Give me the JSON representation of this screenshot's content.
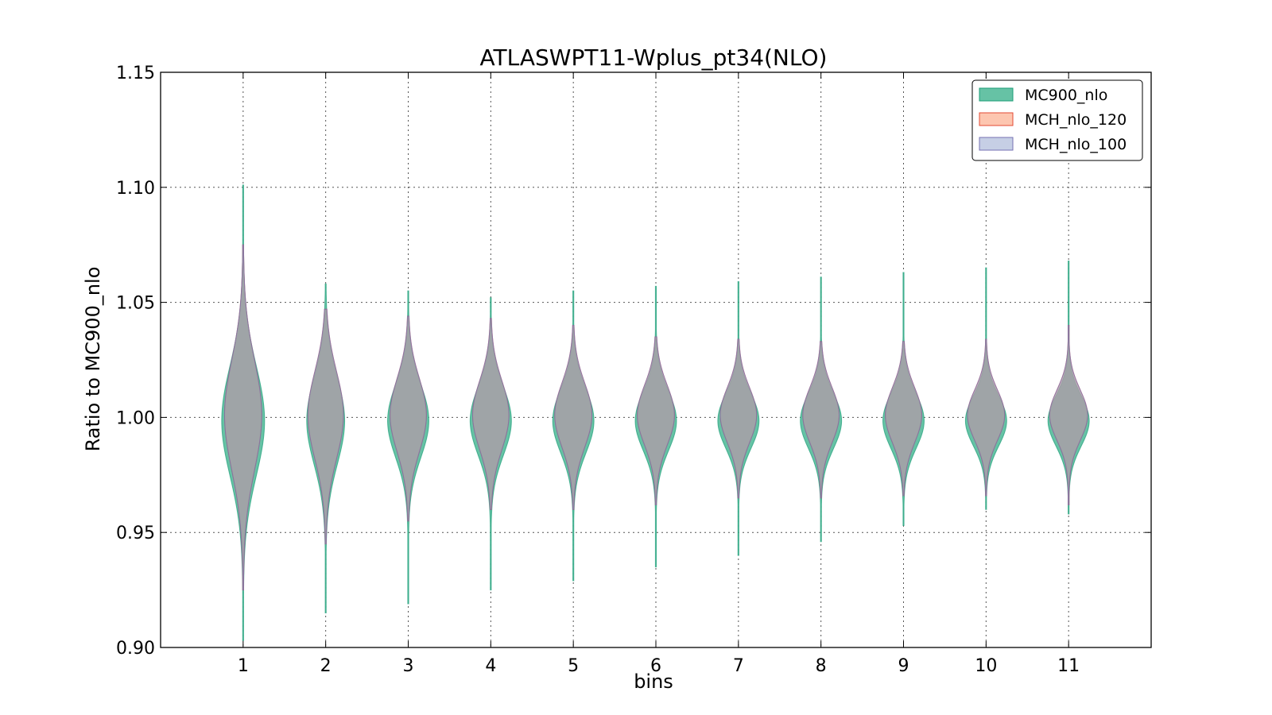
{
  "chart_data": {
    "type": "violin",
    "title": "ATLASWPT11-Wplus_pt34(NLO)",
    "xlabel": "bins",
    "ylabel": "Ratio to MC900_nlo",
    "categories": [
      "1",
      "2",
      "3",
      "4",
      "5",
      "6",
      "7",
      "8",
      "9",
      "10",
      "11"
    ],
    "ylim": [
      0.9,
      1.15
    ],
    "yticks": [
      "0.90",
      "0.95",
      "1.00",
      "1.05",
      "1.10",
      "1.15"
    ],
    "grid": true,
    "legend_position": "top-right",
    "series": [
      {
        "name": "MC900_nlo",
        "color": "#66c2a5",
        "edge": "#1b9e77",
        "center": 0.9985,
        "max_width": [
          0.52,
          0.46,
          0.5,
          0.5,
          0.5,
          0.5,
          0.5,
          0.5,
          0.5,
          0.5,
          0.5
        ],
        "min": [
          0.903,
          0.915,
          0.919,
          0.925,
          0.929,
          0.935,
          0.94,
          0.946,
          0.953,
          0.96,
          0.958
        ],
        "max": [
          1.101,
          1.058,
          1.055,
          1.052,
          1.055,
          1.057,
          1.059,
          1.061,
          1.063,
          1.065,
          1.068
        ],
        "spread": [
          0.024,
          0.019,
          0.016,
          0.015,
          0.014,
          0.013,
          0.012,
          0.012,
          0.012,
          0.011,
          0.011
        ]
      },
      {
        "name": "MCH_nlo_120",
        "color": "#fc8d62",
        "edge": "#e34a33",
        "center": 1.001,
        "max_width": [
          0.45,
          0.43,
          0.44,
          0.44,
          0.45,
          0.45,
          0.44,
          0.44,
          0.44,
          0.45,
          0.46
        ],
        "min": [
          0.925,
          0.945,
          0.955,
          0.96,
          0.96,
          0.962,
          0.965,
          0.965,
          0.966,
          0.966,
          0.962
        ],
        "max": [
          1.075,
          1.047,
          1.044,
          1.043,
          1.04,
          1.035,
          1.034,
          1.033,
          1.033,
          1.034,
          1.04
        ],
        "spread": [
          0.024,
          0.019,
          0.016,
          0.015,
          0.014,
          0.013,
          0.012,
          0.012,
          0.012,
          0.011,
          0.011
        ]
      },
      {
        "name": "MCH_nlo_100",
        "color": "#8da0cb",
        "edge": "#7570b3",
        "center": 1.001,
        "max_width": [
          0.45,
          0.43,
          0.44,
          0.44,
          0.45,
          0.45,
          0.44,
          0.44,
          0.44,
          0.45,
          0.46
        ],
        "min": [
          0.925,
          0.945,
          0.955,
          0.96,
          0.96,
          0.962,
          0.965,
          0.965,
          0.966,
          0.966,
          0.962
        ],
        "max": [
          1.075,
          1.047,
          1.044,
          1.043,
          1.04,
          1.035,
          1.034,
          1.033,
          1.033,
          1.034,
          1.04
        ],
        "spread": [
          0.024,
          0.019,
          0.016,
          0.015,
          0.014,
          0.013,
          0.012,
          0.012,
          0.012,
          0.011,
          0.011
        ]
      }
    ]
  }
}
